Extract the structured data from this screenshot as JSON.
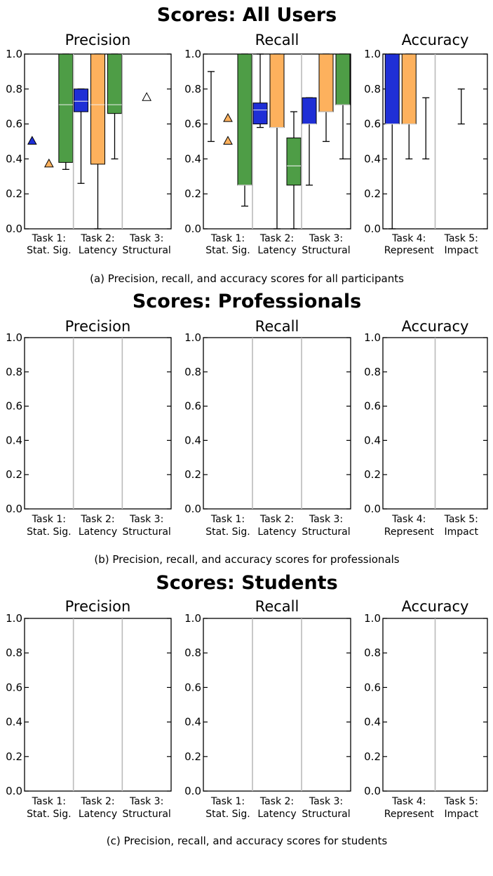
{
  "colors": {
    "blue": "#1f2fd6",
    "orange": "#fdb15d",
    "green": "#4e9d46",
    "divider": "#bbbbbb",
    "axis": "#000000"
  },
  "chart_data": [
    {
      "type": "boxplot",
      "title": "Scores: All Users",
      "caption_prefix": "(a)",
      "caption": "Precision, recall, and accuracy scores for all participants",
      "panels": [
        {
          "title": "Precision",
          "ylim": [
            0,
            1
          ],
          "yticks": [
            "0.0",
            "0.2",
            "0.4",
            "0.6",
            "0.8",
            "1.0"
          ],
          "groups": [
            {
              "label": [
                "Task 1:",
                "Stat. Sig."
              ],
              "items": [
                {
                  "kind": "triangle",
                  "color": "blue",
                  "value": 0.5
                },
                {
                  "kind": "triangle",
                  "color": "orange",
                  "value": 0.37
                },
                {
                  "kind": "box",
                  "color": "green",
                  "q1": 0.38,
                  "median": 0.71,
                  "q3": 1.0,
                  "low": 0.34,
                  "high": 1.0
                }
              ]
            },
            {
              "label": [
                "Task 2:",
                "Latency"
              ],
              "items": [
                {
                  "kind": "box",
                  "color": "blue",
                  "q1": 0.67,
                  "median": 0.73,
                  "q3": 0.8,
                  "low": 0.26,
                  "high": 0.8
                },
                {
                  "kind": "box",
                  "color": "orange",
                  "q1": 0.37,
                  "median": 0.71,
                  "q3": 1.0,
                  "low": 0.0,
                  "high": 1.0
                },
                {
                  "kind": "box",
                  "color": "green",
                  "q1": 0.66,
                  "median": 0.71,
                  "q3": 1.0,
                  "low": 0.4,
                  "high": 1.0
                }
              ]
            },
            {
              "label": [
                "Task 3:",
                "Structural"
              ],
              "items": [
                {
                  "kind": "triangle",
                  "color": "none",
                  "value": 0.75
                }
              ]
            }
          ]
        },
        {
          "title": "Recall",
          "ylim": [
            0,
            1
          ],
          "yticks": [
            "0.0",
            "0.2",
            "0.4",
            "0.6",
            "0.8",
            "1.0"
          ],
          "groups": [
            {
              "label": [
                "Task 1:",
                "Stat. Sig."
              ],
              "items": [
                {
                  "kind": "whisker",
                  "color": "blue",
                  "low": 0.5,
                  "high": 0.9
                },
                {
                  "kind": "triangles",
                  "color": "orange",
                  "values": [
                    0.63,
                    0.5
                  ]
                },
                {
                  "kind": "box",
                  "color": "green",
                  "q1": 0.25,
                  "median": 0.25,
                  "q3": 1.0,
                  "low": 0.13,
                  "high": 1.0
                }
              ]
            },
            {
              "label": [
                "Task 2:",
                "Latency"
              ],
              "items": [
                {
                  "kind": "box",
                  "color": "blue",
                  "q1": 0.6,
                  "median": 0.68,
                  "q3": 0.72,
                  "low": 0.58,
                  "high": 1.0
                },
                {
                  "kind": "box",
                  "color": "orange",
                  "q1": 0.58,
                  "median": 0.58,
                  "q3": 1.0,
                  "low": 0.0,
                  "high": 1.0
                },
                {
                  "kind": "box",
                  "color": "green",
                  "q1": 0.25,
                  "median": 0.36,
                  "q3": 0.52,
                  "low": 0.0,
                  "high": 0.67
                }
              ]
            },
            {
              "label": [
                "Task 3:",
                "Structural"
              ],
              "items": [
                {
                  "kind": "box",
                  "color": "blue",
                  "q1": 0.6,
                  "median": 0.6,
                  "q3": 0.75,
                  "low": 0.25,
                  "high": 0.75
                },
                {
                  "kind": "box",
                  "color": "orange",
                  "q1": 0.67,
                  "median": 0.67,
                  "q3": 1.0,
                  "low": 0.5,
                  "high": 1.0
                },
                {
                  "kind": "box",
                  "color": "green",
                  "q1": 0.71,
                  "median": 0.71,
                  "q3": 1.0,
                  "low": 0.4,
                  "high": 1.0
                }
              ]
            }
          ]
        },
        {
          "title": "Accuracy",
          "ylim": [
            0,
            1
          ],
          "yticks": [
            "0.0",
            "0.2",
            "0.4",
            "0.6",
            "0.8",
            "1.0"
          ],
          "groups": [
            {
              "label": [
                "Task 4:",
                "Represent"
              ],
              "items": [
                {
                  "kind": "box",
                  "color": "blue",
                  "q1": 0.6,
                  "median": 0.6,
                  "q3": 1.0,
                  "low": 0.0,
                  "high": 1.0
                },
                {
                  "kind": "box",
                  "color": "orange",
                  "q1": 0.6,
                  "median": 0.6,
                  "q3": 1.0,
                  "low": 0.4,
                  "high": 1.0
                },
                {
                  "kind": "whisker",
                  "color": "green",
                  "low": 0.4,
                  "high": 0.75
                }
              ]
            },
            {
              "label": [
                "Task 5:",
                "Impact"
              ],
              "items": [
                {
                  "kind": "whisker",
                  "color": "orange",
                  "low": 0.6,
                  "high": 0.8
                }
              ]
            }
          ]
        }
      ]
    },
    {
      "type": "boxplot",
      "title": "Scores: Professionals",
      "caption_prefix": "(b)",
      "caption": "Precision, recall, and accuracy scores for professionals",
      "panels": [
        {
          "title": "Precision",
          "ylim": [
            0,
            1
          ],
          "yticks": [
            "0.0",
            "0.2",
            "0.4",
            "0.6",
            "0.8",
            "1.0"
          ],
          "groups": [
            {
              "label": [
                "Task 1:",
                "Stat. Sig."
              ],
              "items": []
            },
            {
              "label": [
                "Task 2:",
                "Latency"
              ],
              "items": []
            },
            {
              "label": [
                "Task 3:",
                "Structural"
              ],
              "items": []
            }
          ]
        },
        {
          "title": "Recall",
          "ylim": [
            0,
            1
          ],
          "yticks": [
            "0.0",
            "0.2",
            "0.4",
            "0.6",
            "0.8",
            "1.0"
          ],
          "groups": [
            {
              "label": [
                "Task 1:",
                "Stat. Sig."
              ],
              "items": []
            },
            {
              "label": [
                "Task 2:",
                "Latency"
              ],
              "items": []
            },
            {
              "label": [
                "Task 3:",
                "Structural"
              ],
              "items": []
            }
          ]
        },
        {
          "title": "Accuracy",
          "ylim": [
            0,
            1
          ],
          "yticks": [
            "0.0",
            "0.2",
            "0.4",
            "0.6",
            "0.8",
            "1.0"
          ],
          "groups": [
            {
              "label": [
                "Task 4:",
                "Represent"
              ],
              "items": []
            },
            {
              "label": [
                "Task 5:",
                "Impact"
              ],
              "items": []
            }
          ]
        }
      ]
    },
    {
      "type": "boxplot",
      "title": "Scores: Students",
      "caption_prefix": "(c)",
      "caption": "Precision, recall, and accuracy scores for students",
      "panels": [
        {
          "title": "Precision",
          "ylim": [
            0,
            1
          ],
          "yticks": [
            "0.0",
            "0.2",
            "0.4",
            "0.6",
            "0.8",
            "1.0"
          ],
          "groups": [
            {
              "label": [
                "Task 1:",
                "Stat. Sig."
              ],
              "items": []
            },
            {
              "label": [
                "Task 2:",
                "Latency"
              ],
              "items": []
            },
            {
              "label": [
                "Task 3:",
                "Structural"
              ],
              "items": []
            }
          ]
        },
        {
          "title": "Recall",
          "ylim": [
            0,
            1
          ],
          "yticks": [
            "0.0",
            "0.2",
            "0.4",
            "0.6",
            "0.8",
            "1.0"
          ],
          "groups": [
            {
              "label": [
                "Task 1:",
                "Stat. Sig."
              ],
              "items": []
            },
            {
              "label": [
                "Task 2:",
                "Latency"
              ],
              "items": []
            },
            {
              "label": [
                "Task 3:",
                "Structural"
              ],
              "items": []
            }
          ]
        },
        {
          "title": "Accuracy",
          "ylim": [
            0,
            1
          ],
          "yticks": [
            "0.0",
            "0.2",
            "0.4",
            "0.6",
            "0.8",
            "1.0"
          ],
          "groups": [
            {
              "label": [
                "Task 4:",
                "Represent"
              ],
              "items": []
            },
            {
              "label": [
                "Task 5:",
                "Impact"
              ],
              "items": []
            }
          ]
        }
      ]
    }
  ]
}
